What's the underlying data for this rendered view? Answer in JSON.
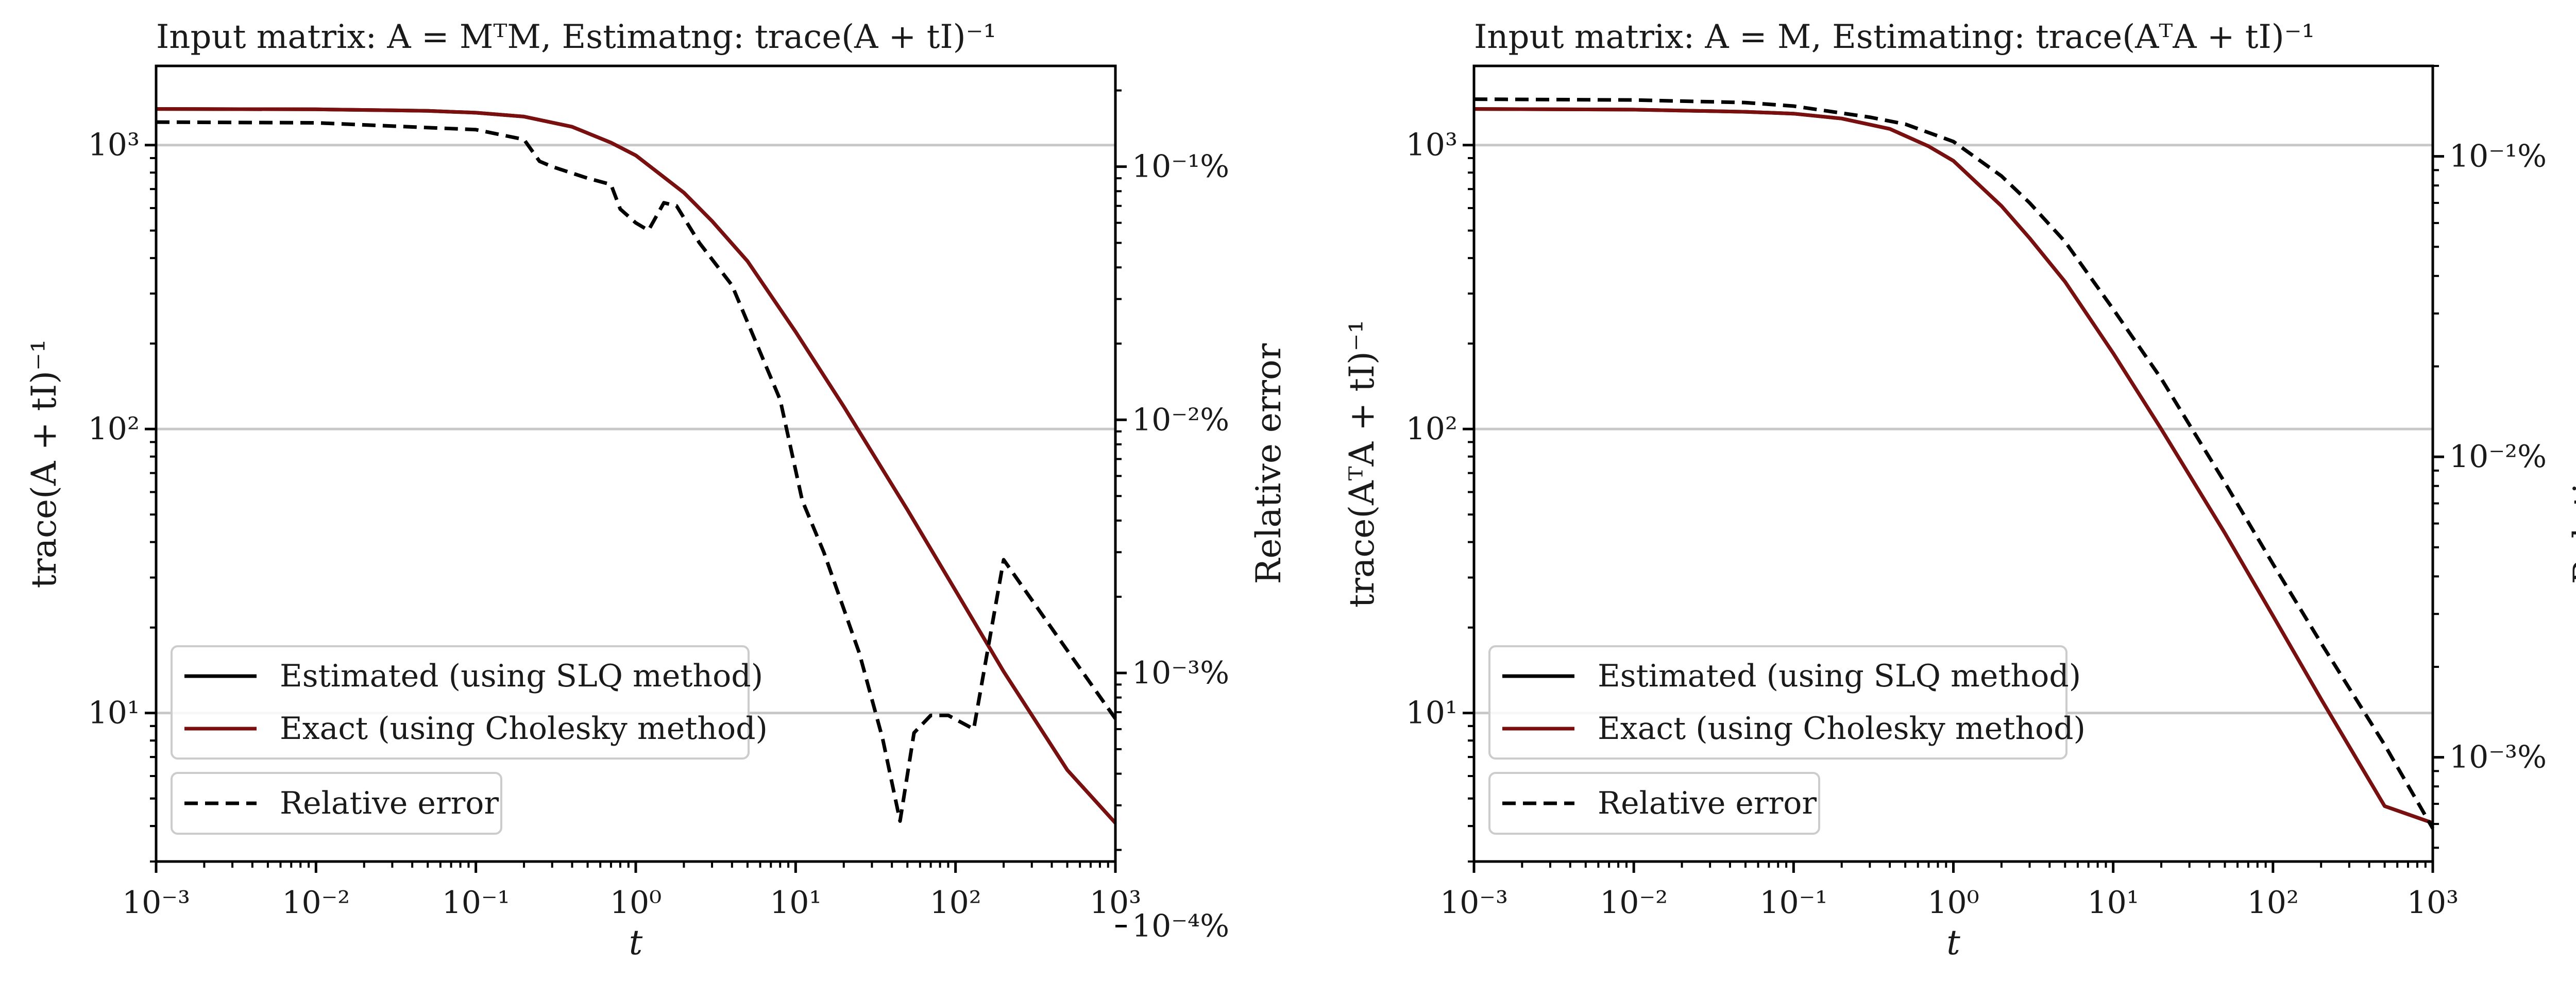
{
  "colors": {
    "estimated": "#000000",
    "exact": "#7a0f0f",
    "relative_error": "#000000",
    "grid": "#c8c8c8"
  },
  "chart_data": [
    {
      "type": "line",
      "title": "Input matrix: A = MᵀM, Estimatng: trace(A + tI)⁻¹",
      "xlabel": "t",
      "ylabel": "trace(A + tI)⁻¹",
      "y2label": "Relative error",
      "xscale": "log",
      "yscale": "log",
      "y2scale": "log",
      "xlim": [
        0.001,
        1000
      ],
      "ylim": [
        3.0,
        1900
      ],
      "y2lim": [
        0.00018,
        0.25
      ],
      "grid": "y-major",
      "legend_placement": "lower-left",
      "x_ticks": [
        "10⁻³",
        "10⁻²",
        "10⁻¹",
        "10⁰",
        "10¹",
        "10²",
        "10³"
      ],
      "y_ticks": [
        "10¹",
        "10²",
        "10³"
      ],
      "y2_ticks": [
        "10⁻⁴%",
        "10⁻³%",
        "10⁻²%",
        "10⁻¹%"
      ],
      "series": [
        {
          "name": "Estimated (using SLQ method)",
          "axis": "left",
          "style": "solid",
          "color": "#000000",
          "x": [
            0.001,
            0.01,
            0.05,
            0.1,
            0.2,
            0.4,
            0.7,
            1,
            2,
            3,
            5,
            10,
            20,
            50,
            100,
            200,
            500,
            1000
          ],
          "y": [
            1340,
            1336,
            1320,
            1300,
            1260,
            1160,
            1020,
            920,
            680,
            540,
            390,
            220,
            120,
            52,
            27,
            14,
            6.3,
            4.1
          ]
        },
        {
          "name": "Exact (using Cholesky method)",
          "axis": "left",
          "style": "solid",
          "color": "#7a0f0f",
          "x": [
            0.001,
            0.01,
            0.05,
            0.1,
            0.2,
            0.4,
            0.7,
            1,
            2,
            3,
            5,
            10,
            20,
            50,
            100,
            200,
            500,
            1000
          ],
          "y": [
            1340,
            1336,
            1320,
            1300,
            1260,
            1160,
            1020,
            920,
            680,
            540,
            390,
            220,
            120,
            52,
            27,
            14,
            6.3,
            4.1
          ]
        },
        {
          "name": "Relative error",
          "axis": "right",
          "style": "dashed",
          "color": "#000000",
          "x": [
            0.001,
            0.01,
            0.1,
            0.2,
            0.25,
            0.3,
            0.5,
            0.7,
            0.8,
            1.0,
            1.2,
            1.5,
            1.8,
            2.5,
            4,
            8,
            11,
            15,
            25,
            35,
            45,
            55,
            70,
            90,
            130,
            200,
            400,
            1000
          ],
          "y": [
            0.15,
            0.149,
            0.14,
            0.128,
            0.105,
            0.1,
            0.09,
            0.085,
            0.068,
            0.06,
            0.056,
            0.072,
            0.07,
            0.05,
            0.034,
            0.012,
            0.0048,
            0.003,
            0.0012,
            0.00055,
            0.00026,
            0.00058,
            0.00068,
            0.00068,
            0.0006,
            0.0028,
            0.0015,
            0.00066
          ]
        }
      ]
    },
    {
      "type": "line",
      "title": "Input matrix: A = M, Estimating: trace(AᵀA + tI)⁻¹",
      "xlabel": "t",
      "ylabel": "trace(AᵀA + tI)⁻¹",
      "y2label": "Relative error",
      "xscale": "log",
      "yscale": "log",
      "y2scale": "log",
      "xlim": [
        0.001,
        1000
      ],
      "ylim": [
        3.0,
        1900
      ],
      "y2lim": [
        0.00045,
        0.2
      ],
      "grid": "y-major",
      "legend_placement": "lower-left",
      "x_ticks": [
        "10⁻³",
        "10⁻²",
        "10⁻¹",
        "10⁰",
        "10¹",
        "10²",
        "10³"
      ],
      "y_ticks": [
        "10¹",
        "10²",
        "10³"
      ],
      "y2_ticks": [
        "10⁻³%",
        "10⁻²%",
        "10⁻¹%"
      ],
      "series": [
        {
          "name": "Estimated (using SLQ method)",
          "axis": "left",
          "style": "solid",
          "color": "#000000",
          "x": [
            0.001,
            0.01,
            0.05,
            0.1,
            0.2,
            0.4,
            0.7,
            1,
            2,
            3,
            5,
            10,
            20,
            50,
            100,
            200,
            500,
            1000
          ],
          "y": [
            1340,
            1333,
            1310,
            1290,
            1240,
            1140,
            990,
            880,
            610,
            470,
            330,
            185,
            100,
            43,
            22,
            11.2,
            4.7,
            4.1
          ]
        },
        {
          "name": "Exact (using Cholesky method)",
          "axis": "left",
          "style": "solid",
          "color": "#7a0f0f",
          "x": [
            0.001,
            0.01,
            0.05,
            0.1,
            0.2,
            0.4,
            0.7,
            1,
            2,
            3,
            5,
            10,
            20,
            50,
            100,
            200,
            500,
            1000
          ],
          "y": [
            1340,
            1333,
            1310,
            1290,
            1240,
            1140,
            990,
            880,
            610,
            470,
            330,
            185,
            100,
            43,
            22,
            11.2,
            4.7,
            4.1
          ]
        },
        {
          "name": "Relative error",
          "axis": "right",
          "style": "dashed",
          "color": "#000000",
          "x": [
            0.001,
            0.01,
            0.05,
            0.1,
            0.3,
            0.5,
            1,
            2,
            3,
            5,
            10,
            20,
            50,
            100,
            200,
            500,
            1000
          ],
          "y": [
            0.155,
            0.154,
            0.151,
            0.147,
            0.135,
            0.128,
            0.112,
            0.086,
            0.07,
            0.052,
            0.031,
            0.0182,
            0.0082,
            0.0044,
            0.0024,
            0.0011,
            0.00058
          ]
        }
      ]
    }
  ]
}
